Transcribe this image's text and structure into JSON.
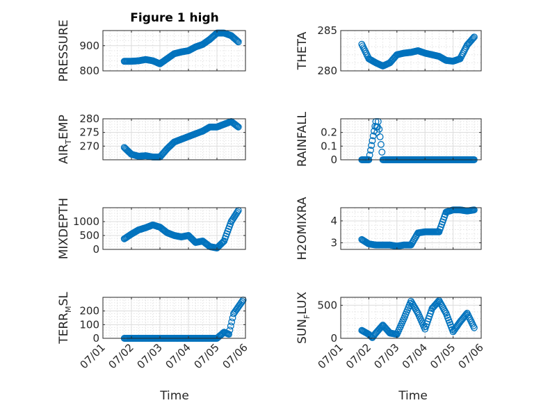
{
  "figure": {
    "title": "Figure 1 high"
  },
  "chart_data": [
    {
      "type": "scatter",
      "ylabel": "PRESSURE",
      "title": "Figure 1 high",
      "xlim": [
        "07/01",
        "07/06"
      ],
      "ylim": [
        800,
        960
      ],
      "yticks": [
        800,
        900
      ],
      "grid": true,
      "x": [
        "07/01 18:00",
        "07/02 00:00",
        "07/02 06:00",
        "07/02 12:00",
        "07/02 18:00",
        "07/03 00:00",
        "07/03 06:00",
        "07/03 12:00",
        "07/03 18:00",
        "07/04 00:00",
        "07/04 06:00",
        "07/04 12:00",
        "07/04 18:00",
        "07/05 00:00",
        "07/05 06:00",
        "07/05 12:00",
        "07/05 18:00"
      ],
      "y": [
        838,
        838,
        840,
        845,
        840,
        828,
        848,
        868,
        875,
        880,
        895,
        905,
        925,
        950,
        950,
        940,
        915
      ]
    },
    {
      "type": "scatter",
      "ylabel": "THETA",
      "xlim": [
        "07/01",
        "07/06"
      ],
      "ylim": [
        280,
        285
      ],
      "yticks": [
        280,
        285
      ],
      "grid": true,
      "x": [
        "07/01 18:00",
        "07/02 00:00",
        "07/02 06:00",
        "07/02 12:00",
        "07/02 18:00",
        "07/03 00:00",
        "07/03 06:00",
        "07/03 12:00",
        "07/03 18:00",
        "07/04 00:00",
        "07/04 06:00",
        "07/04 12:00",
        "07/04 18:00",
        "07/05 00:00",
        "07/05 06:00",
        "07/05 12:00",
        "07/05 18:00"
      ],
      "y": [
        283.3,
        281.5,
        281.0,
        280.6,
        281.0,
        282.0,
        282.2,
        282.3,
        282.5,
        282.2,
        282.0,
        281.8,
        281.3,
        281.2,
        281.5,
        283.2,
        284.2
      ]
    },
    {
      "type": "scatter",
      "ylabel": "AIR_TEMP",
      "ylabel_main": "AIR",
      "ylabel_sub": "T",
      "ylabel_rest": "EMP",
      "xlim": [
        "07/01",
        "07/06"
      ],
      "ylim": [
        265,
        280
      ],
      "yticks": [
        270,
        275,
        280
      ],
      "grid": true,
      "x": [
        "07/01 18:00",
        "07/02 00:00",
        "07/02 06:00",
        "07/02 12:00",
        "07/02 18:00",
        "07/03 00:00",
        "07/03 06:00",
        "07/03 12:00",
        "07/03 18:00",
        "07/04 00:00",
        "07/04 06:00",
        "07/04 12:00",
        "07/04 18:00",
        "07/05 00:00",
        "07/05 06:00",
        "07/05 12:00",
        "07/05 18:00"
      ],
      "y": [
        269.5,
        267.0,
        266.3,
        266.5,
        266.0,
        266.0,
        269.0,
        271.5,
        272.5,
        273.5,
        274.5,
        275.5,
        277.0,
        277.0,
        278.0,
        279.0,
        277.0
      ]
    },
    {
      "type": "scatter",
      "ylabel": "RAINFALL",
      "xlim": [
        "07/01",
        "07/06"
      ],
      "ylim": [
        0,
        0.3
      ],
      "yticks": [
        0,
        0.1,
        0.2
      ],
      "grid": true,
      "x": [
        "07/01 18:00",
        "07/02 00:00",
        "07/02 06:00",
        "07/02 07:00",
        "07/02 08:00",
        "07/02 12:00",
        "07/02 18:00",
        "07/03 00:00",
        "07/03 06:00",
        "07/03 12:00",
        "07/03 18:00",
        "07/04 00:00",
        "07/04 06:00",
        "07/04 12:00",
        "07/04 18:00",
        "07/05 00:00",
        "07/05 06:00",
        "07/05 12:00",
        "07/05 18:00"
      ],
      "y": [
        0,
        0,
        0.28,
        0.2,
        0.28,
        0,
        0,
        0,
        0,
        0,
        0,
        0,
        0,
        0,
        0,
        0,
        0,
        0,
        0
      ]
    },
    {
      "type": "scatter",
      "ylabel": "MIXDEPTH",
      "xlim": [
        "07/01",
        "07/06"
      ],
      "ylim": [
        0,
        1500
      ],
      "yticks": [
        0,
        500,
        1000
      ],
      "grid": true,
      "x": [
        "07/01 18:00",
        "07/02 00:00",
        "07/02 06:00",
        "07/02 12:00",
        "07/02 18:00",
        "07/03 00:00",
        "07/03 06:00",
        "07/03 12:00",
        "07/03 18:00",
        "07/04 00:00",
        "07/04 06:00",
        "07/04 12:00",
        "07/04 18:00",
        "07/05 00:00",
        "07/05 06:00",
        "07/05 12:00",
        "07/05 18:00"
      ],
      "y": [
        380,
        550,
        700,
        780,
        880,
        800,
        600,
        500,
        450,
        500,
        250,
        300,
        100,
        50,
        300,
        1000,
        1400
      ]
    },
    {
      "type": "scatter",
      "ylabel": "H2OMIXRA",
      "xlim": [
        "07/01",
        "07/06"
      ],
      "ylim": [
        2.7,
        4.6
      ],
      "yticks": [
        3,
        4
      ],
      "grid": true,
      "x": [
        "07/01 18:00",
        "07/02 00:00",
        "07/02 06:00",
        "07/02 12:00",
        "07/02 18:00",
        "07/03 00:00",
        "07/03 06:00",
        "07/03 12:00",
        "07/03 18:00",
        "07/04 00:00",
        "07/04 06:00",
        "07/04 12:00",
        "07/04 18:00",
        "07/05 00:00",
        "07/05 06:00",
        "07/05 12:00",
        "07/05 18:00"
      ],
      "y": [
        3.15,
        2.95,
        2.9,
        2.9,
        2.9,
        2.85,
        2.9,
        2.9,
        3.45,
        3.5,
        3.5,
        3.5,
        4.4,
        4.5,
        4.5,
        4.45,
        4.5
      ]
    },
    {
      "type": "scatter",
      "ylabel": "TERR_MSL",
      "ylabel_main": "TERR",
      "ylabel_sub": "M",
      "ylabel_rest": "SL",
      "xlim": [
        "07/01",
        "07/06"
      ],
      "ylim": [
        0,
        300
      ],
      "yticks": [
        0,
        100,
        200
      ],
      "grid": true,
      "x": [
        "07/01 18:00",
        "07/02 00:00",
        "07/02 12:00",
        "07/03 00:00",
        "07/03 12:00",
        "07/04 00:00",
        "07/04 12:00",
        "07/05 00:00",
        "07/05 06:00",
        "07/05 10:00",
        "07/05 14:00",
        "07/05 18:00",
        "07/05 22:00"
      ],
      "y": [
        0,
        0,
        0,
        0,
        0,
        0,
        0,
        0,
        45,
        30,
        180,
        230,
        280
      ]
    },
    {
      "type": "scatter",
      "ylabel": "SUN_FLUX",
      "ylabel_main": "SUN",
      "ylabel_sub": "F",
      "ylabel_rest": "LUX",
      "xlim": [
        "07/01",
        "07/06"
      ],
      "ylim": [
        0,
        620
      ],
      "yticks": [
        0,
        500
      ],
      "grid": true,
      "x": [
        "07/01 18:00",
        "07/02 00:00",
        "07/02 03:00",
        "07/02 06:00",
        "07/02 12:00",
        "07/02 18:00",
        "07/03 00:00",
        "07/03 06:00",
        "07/03 12:00",
        "07/03 18:00",
        "07/04 00:00",
        "07/04 06:00",
        "07/04 12:00",
        "07/04 18:00",
        "07/05 00:00",
        "07/05 06:00",
        "07/05 12:00",
        "07/05 18:00"
      ],
      "y": [
        120,
        60,
        10,
        80,
        200,
        80,
        60,
        300,
        560,
        380,
        140,
        450,
        570,
        380,
        100,
        250,
        380,
        160
      ]
    }
  ],
  "x_axis": {
    "label": "Time",
    "ticks": [
      "07/01",
      "07/02",
      "07/03",
      "07/04",
      "07/05",
      "07/06"
    ]
  },
  "colors": {
    "marker": "#0072BD",
    "axis": "#262626",
    "grid": "#dcdcdc"
  }
}
